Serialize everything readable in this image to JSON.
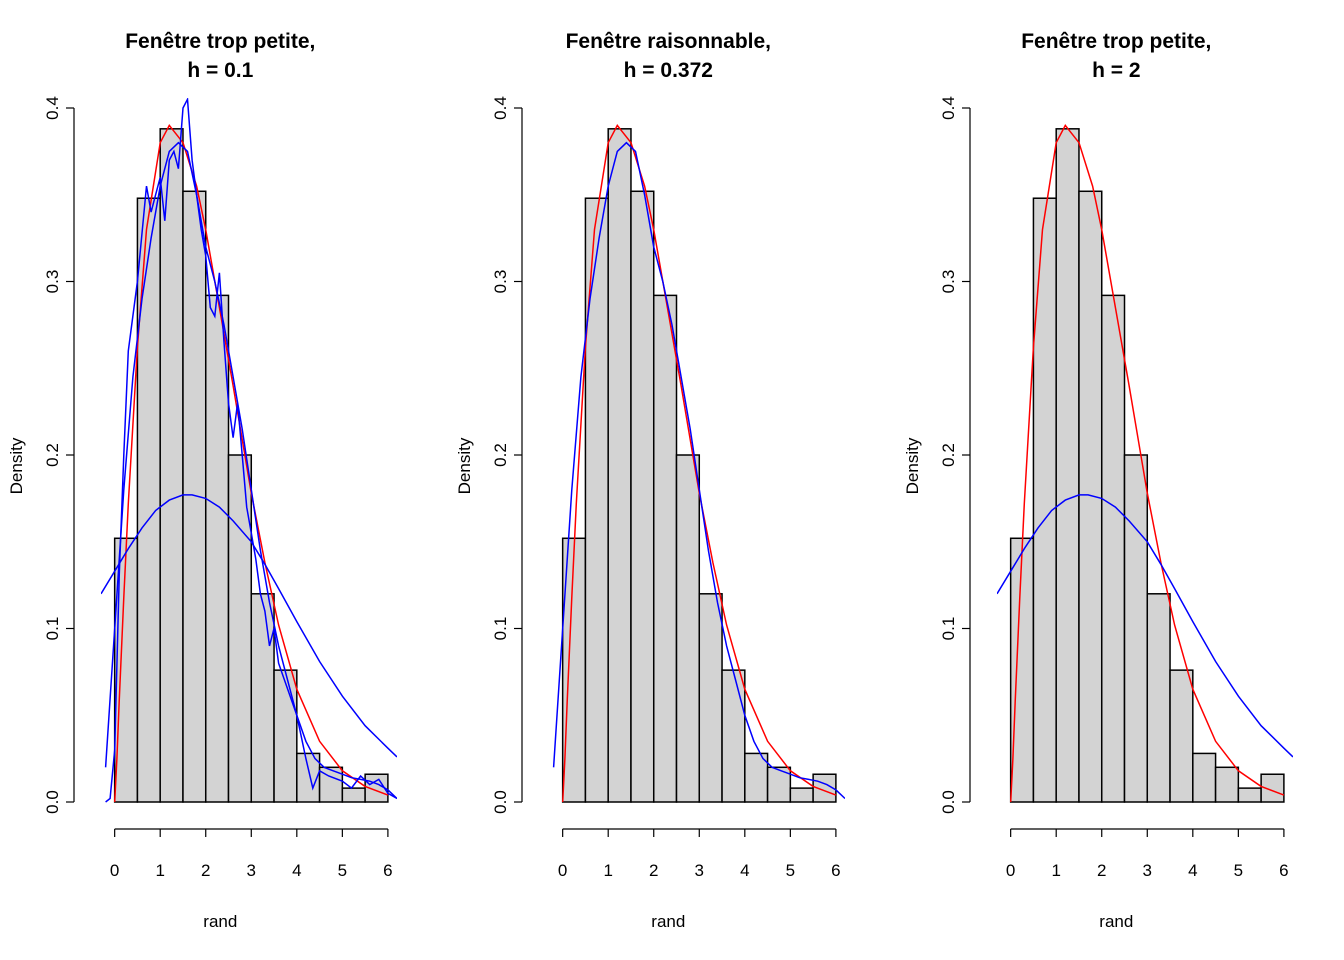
{
  "chart_data": [
    {
      "type": "histogram",
      "title": [
        "Fenêtre trop petite,",
        "h = 0.1"
      ],
      "xlabel": "rand",
      "ylabel": "Density",
      "xlim": [
        -0.3,
        6.2
      ],
      "ylim": [
        0,
        0.4
      ],
      "x_ticks": [
        "0",
        "1",
        "2",
        "3",
        "4",
        "5",
        "6"
      ],
      "y_ticks": [
        "0.0",
        "0.1",
        "0.2",
        "0.3",
        "0.4"
      ],
      "bins": [
        0,
        0.5,
        1,
        1.5,
        2,
        2.5,
        3,
        3.5,
        4,
        4.5,
        5,
        5.5,
        6
      ],
      "values": [
        0.152,
        0.348,
        0.388,
        0.352,
        0.292,
        0.2,
        0.12,
        0.076,
        0.028,
        0.02,
        0.008,
        0.016
      ],
      "curves": [
        {
          "kind": "gamma-density",
          "color": "#ff0000",
          "x": [
            0,
            0.05,
            0.1,
            0.2,
            0.3,
            0.5,
            0.7,
            1,
            1.2,
            1.5,
            1.8,
            2,
            2.3,
            2.6,
            3,
            3.3,
            3.6,
            4,
            4.5,
            5,
            5.5,
            6
          ],
          "y": [
            0,
            0.025,
            0.058,
            0.118,
            0.172,
            0.262,
            0.33,
            0.38,
            0.39,
            0.38,
            0.355,
            0.33,
            0.285,
            0.24,
            0.178,
            0.138,
            0.102,
            0.065,
            0.035,
            0.018,
            0.009,
            0.004
          ]
        },
        {
          "kind": "kde h=0.1",
          "color": "#0000ff",
          "x": [
            -0.2,
            -0.1,
            0,
            0.1,
            0.2,
            0.3,
            0.5,
            0.7,
            0.8,
            0.9,
            1,
            1.1,
            1.2,
            1.3,
            1.4,
            1.5,
            1.6,
            1.7,
            1.8,
            1.9,
            2,
            2.1,
            2.2,
            2.3,
            2.4,
            2.5,
            2.6,
            2.7,
            2.8,
            2.9,
            3,
            3.1,
            3.2,
            3.3,
            3.4,
            3.5,
            3.6,
            3.8,
            4,
            4.2,
            4.35,
            4.5,
            4.7,
            5,
            5.2,
            5.4,
            5.6,
            5.8,
            6,
            6.2
          ],
          "y": [
            0,
            0.002,
            0.03,
            0.13,
            0.2,
            0.26,
            0.3,
            0.355,
            0.34,
            0.35,
            0.36,
            0.335,
            0.37,
            0.375,
            0.365,
            0.4,
            0.405,
            0.37,
            0.35,
            0.33,
            0.315,
            0.285,
            0.28,
            0.305,
            0.265,
            0.23,
            0.21,
            0.23,
            0.2,
            0.17,
            0.155,
            0.14,
            0.12,
            0.11,
            0.09,
            0.1,
            0.08,
            0.065,
            0.05,
            0.025,
            0.008,
            0.018,
            0.015,
            0.012,
            0.008,
            0.015,
            0.01,
            0.013,
            0.005,
            0.002
          ]
        },
        {
          "kind": "kde h=0.372",
          "color": "#0000ff",
          "x": [
            -0.2,
            0,
            0.2,
            0.4,
            0.6,
            0.8,
            1,
            1.2,
            1.4,
            1.6,
            1.8,
            2,
            2.2,
            2.4,
            2.6,
            2.8,
            3,
            3.2,
            3.4,
            3.6,
            3.8,
            4,
            4.2,
            4.4,
            4.6,
            4.8,
            5,
            5.2,
            5.4,
            5.6,
            5.8,
            6,
            6.2
          ],
          "y": [
            0.02,
            0.1,
            0.18,
            0.245,
            0.29,
            0.325,
            0.355,
            0.375,
            0.38,
            0.375,
            0.35,
            0.32,
            0.3,
            0.275,
            0.245,
            0.215,
            0.18,
            0.145,
            0.115,
            0.09,
            0.07,
            0.05,
            0.035,
            0.025,
            0.02,
            0.018,
            0.016,
            0.014,
            0.013,
            0.012,
            0.01,
            0.007,
            0.002
          ]
        },
        {
          "kind": "kde h=2",
          "color": "#0000ff",
          "x": [
            -0.3,
            0,
            0.3,
            0.6,
            0.9,
            1.2,
            1.5,
            1.7,
            2,
            2.3,
            2.6,
            3,
            3.3,
            3.6,
            4,
            4.5,
            5,
            5.5,
            6,
            6.2
          ],
          "y": [
            0.12,
            0.133,
            0.146,
            0.158,
            0.168,
            0.174,
            0.177,
            0.177,
            0.175,
            0.17,
            0.162,
            0.15,
            0.137,
            0.123,
            0.104,
            0.081,
            0.061,
            0.044,
            0.031,
            0.026
          ]
        }
      ]
    },
    {
      "type": "histogram",
      "title": [
        "Fenêtre raisonnable,",
        "h = 0.372"
      ],
      "xlabel": "rand",
      "ylabel": "Density",
      "xlim": [
        -0.3,
        6.2
      ],
      "ylim": [
        0,
        0.4
      ],
      "x_ticks": [
        "0",
        "1",
        "2",
        "3",
        "4",
        "5",
        "6"
      ],
      "y_ticks": [
        "0.0",
        "0.1",
        "0.2",
        "0.3",
        "0.4"
      ],
      "bins": [
        0,
        0.5,
        1,
        1.5,
        2,
        2.5,
        3,
        3.5,
        4,
        4.5,
        5,
        5.5,
        6
      ],
      "values": [
        0.152,
        0.348,
        0.388,
        0.352,
        0.292,
        0.2,
        0.12,
        0.076,
        0.028,
        0.02,
        0.008,
        0.016
      ],
      "curves": [
        {
          "kind": "gamma-density",
          "color": "#ff0000",
          "x": [
            0,
            0.05,
            0.1,
            0.2,
            0.3,
            0.5,
            0.7,
            1,
            1.2,
            1.5,
            1.8,
            2,
            2.3,
            2.6,
            3,
            3.3,
            3.6,
            4,
            4.5,
            5,
            5.5,
            6
          ],
          "y": [
            0,
            0.025,
            0.058,
            0.118,
            0.172,
            0.262,
            0.33,
            0.38,
            0.39,
            0.38,
            0.355,
            0.33,
            0.285,
            0.24,
            0.178,
            0.138,
            0.102,
            0.065,
            0.035,
            0.018,
            0.009,
            0.004
          ]
        },
        {
          "kind": "kde h=0.372",
          "color": "#0000ff",
          "x": [
            -0.2,
            0,
            0.2,
            0.4,
            0.6,
            0.8,
            1,
            1.2,
            1.4,
            1.6,
            1.8,
            2,
            2.2,
            2.4,
            2.6,
            2.8,
            3,
            3.2,
            3.4,
            3.6,
            3.8,
            4,
            4.2,
            4.4,
            4.6,
            4.8,
            5,
            5.2,
            5.4,
            5.6,
            5.8,
            6,
            6.2
          ],
          "y": [
            0.02,
            0.1,
            0.18,
            0.245,
            0.29,
            0.325,
            0.355,
            0.375,
            0.38,
            0.375,
            0.35,
            0.32,
            0.3,
            0.275,
            0.245,
            0.215,
            0.18,
            0.145,
            0.115,
            0.09,
            0.07,
            0.05,
            0.035,
            0.025,
            0.02,
            0.018,
            0.016,
            0.014,
            0.013,
            0.012,
            0.01,
            0.007,
            0.002
          ]
        }
      ]
    },
    {
      "type": "histogram",
      "title": [
        "Fenêtre trop petite,",
        "h = 2"
      ],
      "xlabel": "rand",
      "ylabel": "Density",
      "xlim": [
        -0.3,
        6.2
      ],
      "ylim": [
        0,
        0.4
      ],
      "x_ticks": [
        "0",
        "1",
        "2",
        "3",
        "4",
        "5",
        "6"
      ],
      "y_ticks": [
        "0.0",
        "0.1",
        "0.2",
        "0.3",
        "0.4"
      ],
      "bins": [
        0,
        0.5,
        1,
        1.5,
        2,
        2.5,
        3,
        3.5,
        4,
        4.5,
        5,
        5.5,
        6
      ],
      "values": [
        0.152,
        0.348,
        0.388,
        0.352,
        0.292,
        0.2,
        0.12,
        0.076,
        0.028,
        0.02,
        0.008,
        0.016
      ],
      "curves": [
        {
          "kind": "gamma-density",
          "color": "#ff0000",
          "x": [
            0,
            0.05,
            0.1,
            0.2,
            0.3,
            0.5,
            0.7,
            1,
            1.2,
            1.5,
            1.8,
            2,
            2.3,
            2.6,
            3,
            3.3,
            3.6,
            4,
            4.5,
            5,
            5.5,
            6
          ],
          "y": [
            0,
            0.025,
            0.058,
            0.118,
            0.172,
            0.262,
            0.33,
            0.38,
            0.39,
            0.38,
            0.355,
            0.33,
            0.285,
            0.24,
            0.178,
            0.138,
            0.102,
            0.065,
            0.035,
            0.018,
            0.009,
            0.004
          ]
        },
        {
          "kind": "kde h=2",
          "color": "#0000ff",
          "x": [
            -0.3,
            0,
            0.3,
            0.6,
            0.9,
            1.2,
            1.5,
            1.7,
            2,
            2.3,
            2.6,
            3,
            3.3,
            3.6,
            4,
            4.5,
            5,
            5.5,
            6,
            6.2
          ],
          "y": [
            0.12,
            0.133,
            0.146,
            0.158,
            0.168,
            0.174,
            0.177,
            0.177,
            0.175,
            0.17,
            0.162,
            0.15,
            0.137,
            0.123,
            0.104,
            0.081,
            0.061,
            0.044,
            0.031,
            0.026
          ]
        }
      ]
    }
  ]
}
